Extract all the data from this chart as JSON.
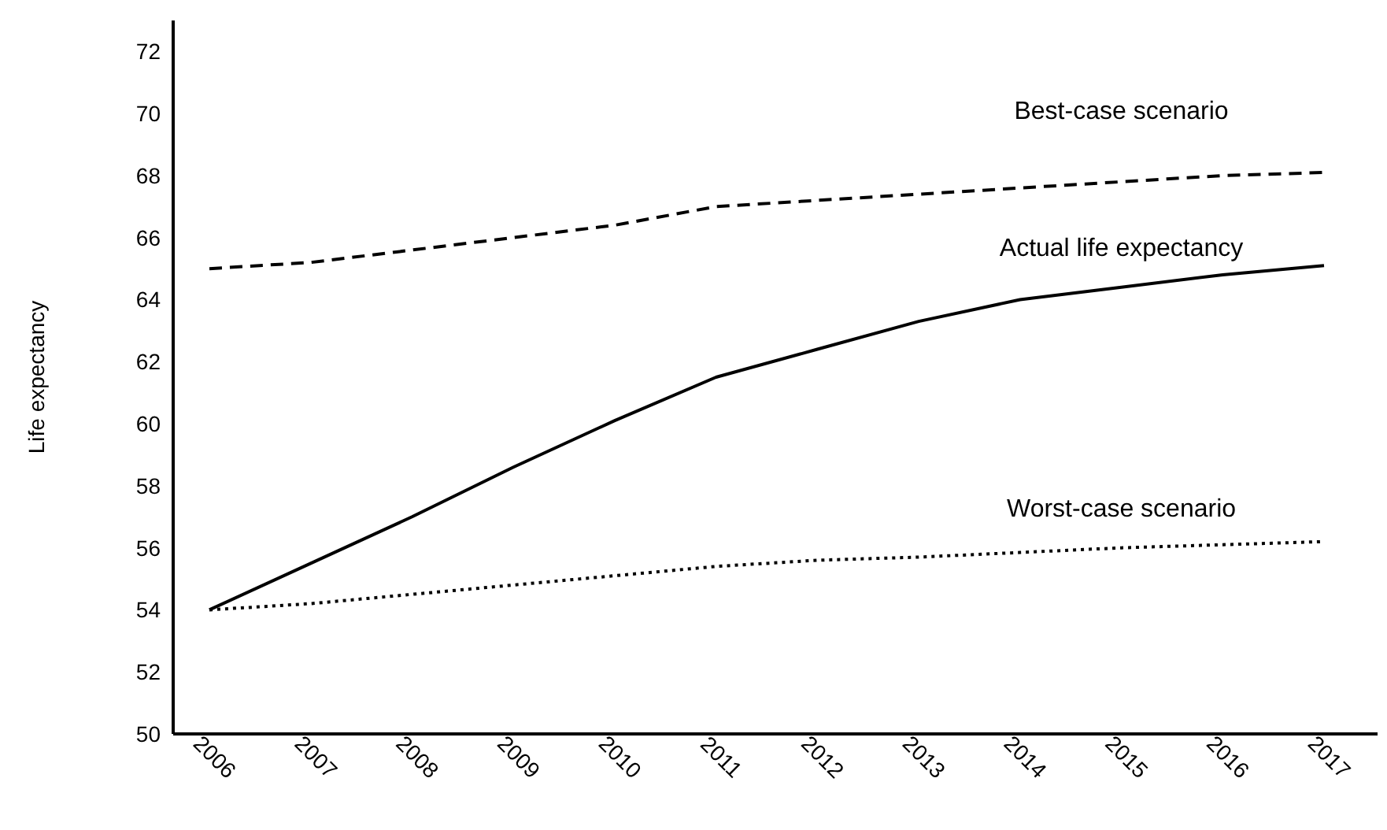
{
  "chart_data": {
    "type": "line",
    "ylabel": "Life expectancy",
    "categories": [
      "2006",
      "2007",
      "2008",
      "2009",
      "2010",
      "2011",
      "2012",
      "2013",
      "2014",
      "2015",
      "2016",
      "2017"
    ],
    "series": [
      {
        "name": "Best-case scenario",
        "color": "#000000",
        "line_style": "dashed",
        "values": [
          65.0,
          65.2,
          65.6,
          66.0,
          66.4,
          67.0,
          67.2,
          67.4,
          67.6,
          67.8,
          68.0,
          68.1
        ]
      },
      {
        "name": "Actual life expectancy",
        "color": "#000000",
        "line_style": "solid",
        "values": [
          54.0,
          55.5,
          57.0,
          58.6,
          60.1,
          61.5,
          62.4,
          63.3,
          64.0,
          64.4,
          64.8,
          65.1
        ]
      },
      {
        "name": "Worst-case scenario",
        "color": "#000000",
        "line_style": "dotted",
        "values": [
          54.0,
          54.2,
          54.5,
          54.8,
          55.1,
          55.4,
          55.6,
          55.7,
          55.85,
          56.0,
          56.1,
          56.2
        ]
      }
    ],
    "ylim": [
      50,
      73
    ],
    "yticks": [
      50,
      52,
      54,
      56,
      58,
      60,
      62,
      64,
      66,
      68,
      70,
      72
    ],
    "grid": false,
    "legend": false,
    "marker": "none"
  }
}
